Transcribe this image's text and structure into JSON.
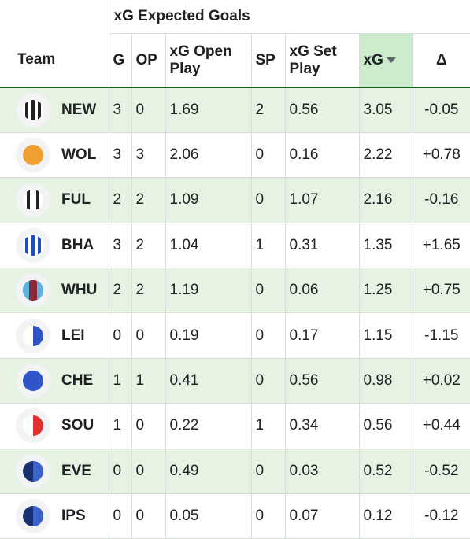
{
  "group_header": "xG Expected Goals",
  "columns": {
    "team": "Team",
    "g": "G",
    "op": "OP",
    "xg_open_play": "xG Open Play",
    "sp": "SP",
    "xg_set_play": "xG Set Play",
    "xg": "xG",
    "delta": "Δ"
  },
  "sort": {
    "column": "xg",
    "direction": "descending"
  },
  "rows": [
    {
      "team": "NEW",
      "badge": "black-white-stripes",
      "g": "3",
      "op": "0",
      "xg_open_play": "1.69",
      "sp": "2",
      "xg_set_play": "0.56",
      "xg": "3.05",
      "delta": "-0.05"
    },
    {
      "team": "WOL",
      "badge": "orange-solid",
      "g": "3",
      "op": "3",
      "xg_open_play": "2.06",
      "sp": "0",
      "xg_set_play": "0.16",
      "xg": "2.22",
      "delta": "+0.78"
    },
    {
      "team": "FUL",
      "badge": "white-black-stripes",
      "g": "2",
      "op": "2",
      "xg_open_play": "1.09",
      "sp": "0",
      "xg_set_play": "1.07",
      "xg": "2.16",
      "delta": "-0.16"
    },
    {
      "team": "BHA",
      "badge": "blue-white-stripes",
      "g": "3",
      "op": "2",
      "xg_open_play": "1.04",
      "sp": "1",
      "xg_set_play": "0.31",
      "xg": "1.35",
      "delta": "+1.65"
    },
    {
      "team": "WHU",
      "badge": "claret-blue",
      "g": "2",
      "op": "2",
      "xg_open_play": "1.19",
      "sp": "0",
      "xg_set_play": "0.06",
      "xg": "1.25",
      "delta": "+0.75"
    },
    {
      "team": "LEI",
      "badge": "white-blue-half",
      "g": "0",
      "op": "0",
      "xg_open_play": "0.19",
      "sp": "0",
      "xg_set_play": "0.17",
      "xg": "1.15",
      "delta": "-1.15"
    },
    {
      "team": "CHE",
      "badge": "blue-solid",
      "g": "1",
      "op": "1",
      "xg_open_play": "0.41",
      "sp": "0",
      "xg_set_play": "0.56",
      "xg": "0.98",
      "delta": "+0.02"
    },
    {
      "team": "SOU",
      "badge": "white-red-half",
      "g": "1",
      "op": "0",
      "xg_open_play": "0.22",
      "sp": "1",
      "xg_set_play": "0.34",
      "xg": "0.56",
      "delta": "+0.44"
    },
    {
      "team": "EVE",
      "badge": "navy-blue-half",
      "g": "0",
      "op": "0",
      "xg_open_play": "0.49",
      "sp": "0",
      "xg_set_play": "0.03",
      "xg": "0.52",
      "delta": "-0.52"
    },
    {
      "team": "IPS",
      "badge": "navy-blue-half",
      "g": "0",
      "op": "0",
      "xg_open_play": "0.05",
      "sp": "0",
      "xg_set_play": "0.07",
      "xg": "0.12",
      "delta": "-0.12"
    }
  ],
  "colors": {
    "alt_row": "#e6f3e2",
    "sorted_header": "#cdeccd",
    "header_rule": "#1b5e20"
  }
}
